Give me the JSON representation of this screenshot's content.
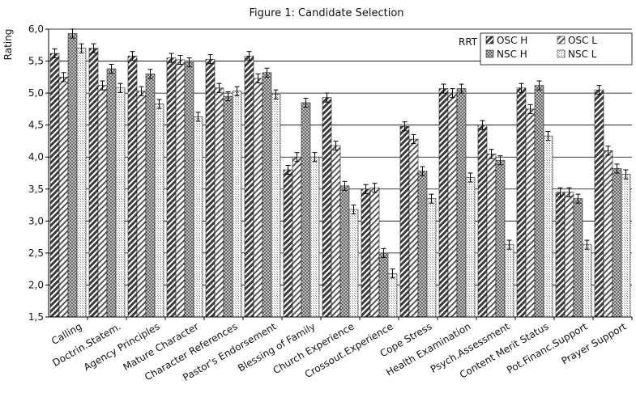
{
  "chart_data": {
    "type": "bar",
    "title": "Figure 1:  Candidate Selection",
    "xlabel": "",
    "ylabel": "Rating",
    "ylim": [
      1.5,
      6.0
    ],
    "yticks": [
      "1,5",
      "2,0",
      "2,5",
      "3,0",
      "3,5",
      "4,0",
      "4,5",
      "5,0",
      "5,5",
      "6,0"
    ],
    "grid": true,
    "legend_title": "RRT",
    "legend_position": "top-right",
    "categories": [
      "Calling",
      "Doctrin.Statem.",
      "Agency Principles",
      "Mature Character",
      "Character References",
      "Pastor's Endorsement",
      "Blessing of Family",
      "Church Experience",
      "Crossout.Experience",
      "Cope Stress",
      "Health Examination",
      "Psych.Assessment",
      "Content Merit Status",
      "Pot.Financ.Support",
      "Prayer Support"
    ],
    "series": [
      {
        "name": "OSC H",
        "pattern": "osch",
        "values": [
          5.62,
          5.7,
          5.58,
          5.55,
          5.53,
          5.58,
          3.8,
          4.93,
          3.5,
          4.48,
          5.07,
          4.5,
          5.08,
          3.45,
          5.05
        ]
      },
      {
        "name": "OSC L",
        "pattern": "oscl",
        "values": [
          5.25,
          5.12,
          5.03,
          5.52,
          5.08,
          5.23,
          4.0,
          4.18,
          3.52,
          4.28,
          5.0,
          4.05,
          4.75,
          3.45,
          4.1
        ]
      },
      {
        "name": "NSC H",
        "pattern": "nsch",
        "values": [
          5.93,
          5.38,
          5.3,
          5.48,
          4.95,
          5.32,
          4.85,
          3.55,
          2.5,
          3.78,
          5.07,
          3.95,
          5.12,
          3.35,
          3.82
        ]
      },
      {
        "name": "NSC L",
        "pattern": "nscl",
        "values": [
          5.7,
          5.08,
          4.83,
          4.63,
          5.03,
          4.98,
          4.0,
          3.18,
          2.18,
          3.35,
          3.68,
          2.63,
          4.33,
          2.63,
          3.73
        ]
      }
    ],
    "error_bar": 0.07
  }
}
